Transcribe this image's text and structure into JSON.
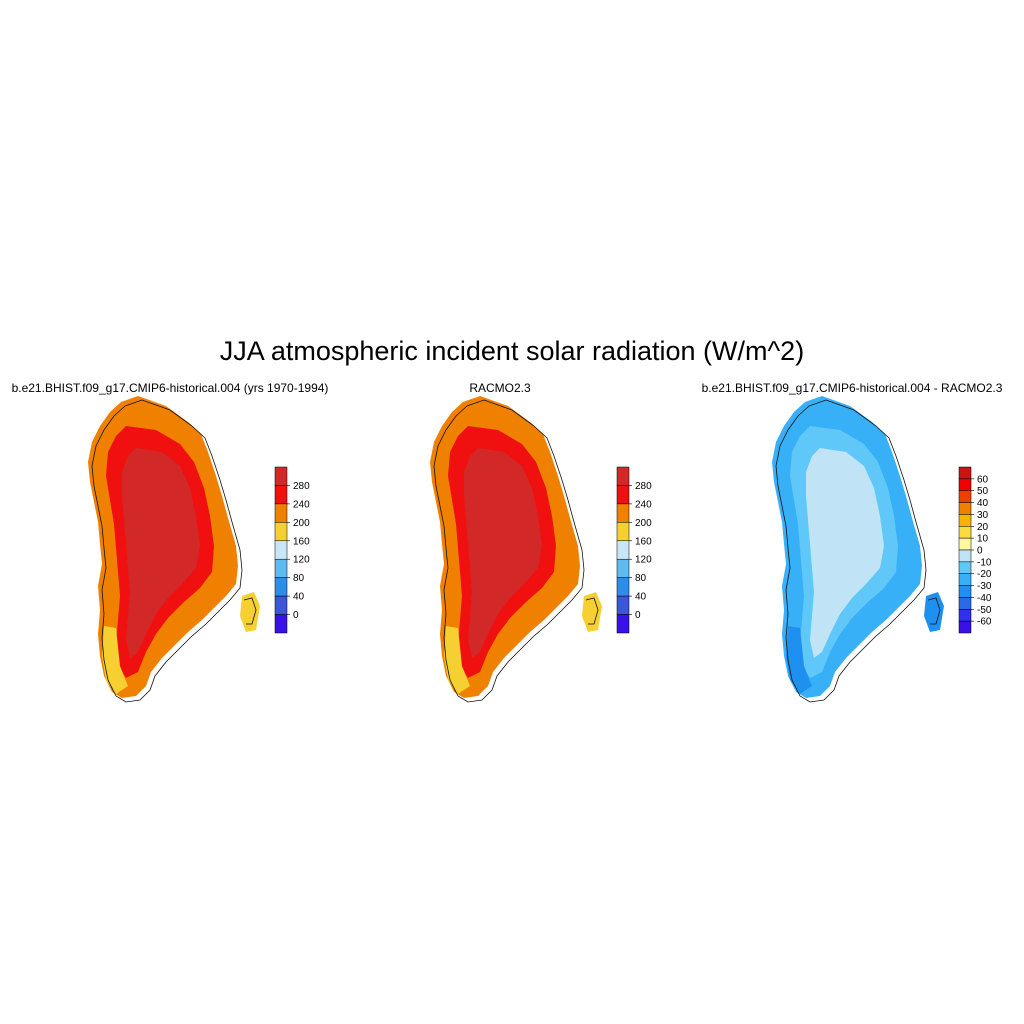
{
  "title": "JJA atmospheric incident solar radiation (W/m^2)",
  "panels": [
    {
      "title": "b.e21.BHIST.f09_g17.CMIP6-historical.004 (yrs 1970-1994)",
      "colorbar": {
        "colors": [
          "#3a10e8",
          "#3b56d8",
          "#2c8ee6",
          "#5fbaf0",
          "#c8e6f5",
          "#f5d030",
          "#f08000",
          "#f01010",
          "#d22828"
        ],
        "labels": [
          "0",
          "40",
          "80",
          "120",
          "160",
          "200",
          "240",
          "280"
        ]
      },
      "fill": {
        "interior": "#d22828",
        "rim": "#f01010",
        "coast": "#f08000",
        "south": "#f5d030"
      }
    },
    {
      "title": "RACMO2.3",
      "colorbar": {
        "colors": [
          "#3a10e8",
          "#3b56d8",
          "#2c8ee6",
          "#5fbaf0",
          "#c8e6f5",
          "#f5d030",
          "#f08000",
          "#f01010",
          "#d22828"
        ],
        "labels": [
          "0",
          "40",
          "80",
          "120",
          "160",
          "200",
          "240",
          "280"
        ]
      },
      "fill": {
        "interior": "#d22828",
        "rim": "#f01010",
        "coast": "#f08000",
        "south": "#f5d030"
      }
    },
    {
      "title": "b.e21.BHIST.f09_g17.CMIP6-historical.004 - RACMO2.3",
      "colorbar": {
        "colors": [
          "#3a10e8",
          "#3030f0",
          "#2a6ae8",
          "#1e90f0",
          "#38b0f8",
          "#60c8f8",
          "#c0e4f6",
          "#fff8a0",
          "#f8dc40",
          "#f8b400",
          "#f08000",
          "#f04000",
          "#f00000",
          "#c81414"
        ],
        "labels": [
          "-60",
          "-50",
          "-40",
          "-30",
          "-20",
          "-10",
          "0",
          "10",
          "20",
          "30",
          "40",
          "50",
          "60"
        ]
      },
      "fill": {
        "interior": "#c0e4f6",
        "rim": "#60c8f8",
        "coast": "#38b0f8",
        "south": "#1e90f0"
      }
    }
  ]
}
